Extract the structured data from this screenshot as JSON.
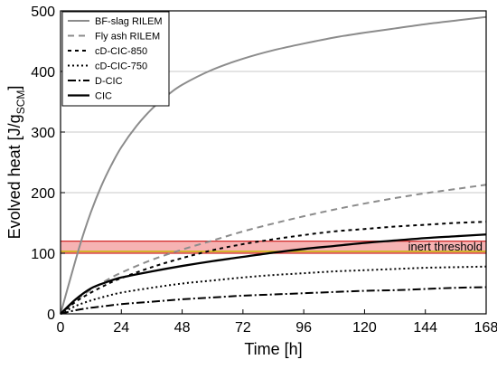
{
  "chart_data": {
    "type": "line",
    "xlabel": "Time [h]",
    "ylabel": "Evolved heat [J/g",
    "ylabel_sub": "SCM",
    "ylabel_close": "]",
    "xlim": [
      0,
      168
    ],
    "ylim": [
      0,
      500
    ],
    "xticks": [
      0,
      24,
      48,
      72,
      96,
      120,
      144,
      168
    ],
    "yticks": [
      0,
      100,
      200,
      300,
      400,
      500
    ],
    "grid": "horizontal",
    "legend_position": "top-left",
    "threshold_band": {
      "label": "inert threshold",
      "y_low": 100,
      "y_high": 120,
      "fill": "#f4a6a6",
      "edge": "#d12a2a",
      "line": "#c9b400"
    },
    "series": [
      {
        "name": "BF-slag RILEM",
        "style": "solid",
        "color": "#8c8c8c",
        "width": 2,
        "x": [
          0,
          4,
          8,
          12,
          16,
          20,
          24,
          30,
          36,
          42,
          48,
          60,
          72,
          84,
          96,
          108,
          120,
          132,
          144,
          156,
          168
        ],
        "y": [
          0,
          60,
          118,
          168,
          210,
          245,
          275,
          310,
          338,
          360,
          378,
          403,
          421,
          435,
          446,
          456,
          464,
          471,
          478,
          484,
          490
        ]
      },
      {
        "name": "Fly ash RILEM",
        "style": "dashed",
        "color": "#8c8c8c",
        "width": 2,
        "x": [
          0,
          6,
          12,
          18,
          24,
          36,
          48,
          60,
          72,
          84,
          96,
          108,
          120,
          132,
          144,
          156,
          168
        ],
        "y": [
          0,
          22,
          40,
          55,
          68,
          89,
          106,
          121,
          136,
          149,
          161,
          172,
          182,
          191,
          199,
          206,
          213
        ]
      },
      {
        "name": "cD-CIC-850",
        "style": "dashed-short",
        "color": "#000000",
        "width": 2,
        "x": [
          0,
          6,
          12,
          18,
          24,
          36,
          48,
          60,
          72,
          84,
          96,
          108,
          120,
          132,
          144,
          156,
          168
        ],
        "y": [
          0,
          20,
          35,
          48,
          59,
          77,
          92,
          105,
          115,
          123,
          130,
          136,
          140,
          144,
          147,
          150,
          152
        ]
      },
      {
        "name": "cD-CIC-750",
        "style": "dotted",
        "color": "#000000",
        "width": 2,
        "x": [
          0,
          6,
          12,
          18,
          24,
          36,
          48,
          60,
          72,
          84,
          96,
          108,
          120,
          132,
          144,
          156,
          168
        ],
        "y": [
          0,
          13,
          22,
          29,
          35,
          43,
          50,
          55,
          60,
          64,
          67,
          70,
          72,
          74,
          76,
          77,
          78
        ]
      },
      {
        "name": "D-CIC",
        "style": "dash-dot",
        "color": "#000000",
        "width": 2,
        "x": [
          0,
          6,
          12,
          18,
          24,
          36,
          48,
          60,
          72,
          84,
          96,
          108,
          120,
          132,
          144,
          156,
          168
        ],
        "y": [
          0,
          6,
          10,
          13,
          16,
          20,
          24,
          27,
          30,
          32,
          34,
          36,
          38,
          39,
          41,
          43,
          44
        ]
      },
      {
        "name": "CIC",
        "style": "solid",
        "color": "#000000",
        "width": 2.3,
        "x": [
          0,
          6,
          12,
          18,
          24,
          36,
          48,
          60,
          72,
          84,
          96,
          108,
          120,
          132,
          144,
          156,
          168
        ],
        "y": [
          0,
          24,
          42,
          52,
          60,
          70,
          79,
          87,
          94,
          101,
          107,
          112,
          117,
          121,
          125,
          128,
          131
        ]
      }
    ]
  }
}
